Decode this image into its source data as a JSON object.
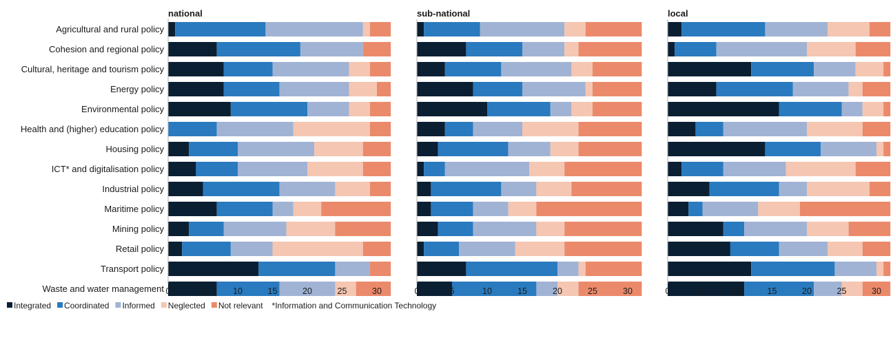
{
  "chart_data": {
    "type": "bar",
    "orientation": "horizontal",
    "stacked": true,
    "categories": [
      "Agricultural and rural policy",
      "Cohesion and regional policy",
      "Cultural, heritage and tourism policy",
      "Energy policy",
      "Environmental policy",
      "Health and (higher) education policy",
      "Housing policy",
      "ICT* and digitalisation policy",
      "Industrial policy",
      "Maritime policy",
      "Mining policy",
      "Retail policy",
      "Transport policy",
      "Waste and water management"
    ],
    "series_names": [
      "Integrated",
      "Coordinated",
      "Informed",
      "Neglected",
      "Not relevant"
    ],
    "colors": [
      "#0b1f33",
      "#2a7abf",
      "#a1b3d4",
      "#f5c6b2",
      "#eb8a6b"
    ],
    "xlim": [
      0,
      32
    ],
    "xticks": [
      0,
      5,
      10,
      15,
      20,
      25,
      30
    ],
    "grid": false,
    "legend_position": "bottom-left",
    "footnote": "*Information and Communication Technology",
    "panels": [
      {
        "title": "national",
        "values": [
          [
            1,
            13,
            14,
            1,
            3
          ],
          [
            7,
            12,
            9,
            0,
            4
          ],
          [
            8,
            7,
            11,
            3,
            3
          ],
          [
            8,
            8,
            10,
            4,
            2
          ],
          [
            9,
            11,
            6,
            3,
            3
          ],
          [
            0,
            7,
            11,
            11,
            3
          ],
          [
            3,
            7,
            11,
            7,
            4
          ],
          [
            4,
            6,
            10,
            8,
            4
          ],
          [
            5,
            11,
            8,
            5,
            3
          ],
          [
            7,
            8,
            3,
            4,
            10
          ],
          [
            3,
            5,
            9,
            7,
            8
          ],
          [
            2,
            7,
            6,
            13,
            4
          ],
          [
            13,
            11,
            5,
            0,
            3
          ],
          [
            7,
            9,
            8,
            3,
            5
          ]
        ]
      },
      {
        "title": "sub-national",
        "values": [
          [
            1,
            8,
            12,
            3,
            8
          ],
          [
            7,
            8,
            6,
            2,
            9
          ],
          [
            4,
            8,
            10,
            3,
            7
          ],
          [
            8,
            7,
            9,
            1,
            7
          ],
          [
            10,
            9,
            3,
            3,
            7
          ],
          [
            4,
            4,
            7,
            8,
            9
          ],
          [
            3,
            10,
            6,
            4,
            9
          ],
          [
            1,
            3,
            12,
            5,
            11
          ],
          [
            2,
            10,
            5,
            5,
            10
          ],
          [
            2,
            6,
            5,
            4,
            15
          ],
          [
            3,
            5,
            9,
            4,
            11
          ],
          [
            1,
            5,
            8,
            7,
            11
          ],
          [
            7,
            13,
            3,
            1,
            8
          ],
          [
            5,
            12,
            3,
            3,
            9
          ]
        ]
      },
      {
        "title": "local",
        "values": [
          [
            2,
            12,
            9,
            6,
            3
          ],
          [
            1,
            6,
            13,
            7,
            5
          ],
          [
            12,
            9,
            6,
            4,
            1
          ],
          [
            7,
            11,
            8,
            2,
            4
          ],
          [
            16,
            9,
            3,
            3,
            1
          ],
          [
            4,
            4,
            12,
            8,
            4
          ],
          [
            14,
            8,
            8,
            1,
            1
          ],
          [
            2,
            6,
            9,
            10,
            5
          ],
          [
            6,
            10,
            4,
            9,
            3
          ],
          [
            3,
            2,
            8,
            6,
            13
          ],
          [
            8,
            3,
            9,
            6,
            6
          ],
          [
            9,
            7,
            7,
            5,
            4
          ],
          [
            12,
            12,
            6,
            1,
            1
          ],
          [
            11,
            10,
            4,
            3,
            4
          ]
        ]
      }
    ]
  }
}
